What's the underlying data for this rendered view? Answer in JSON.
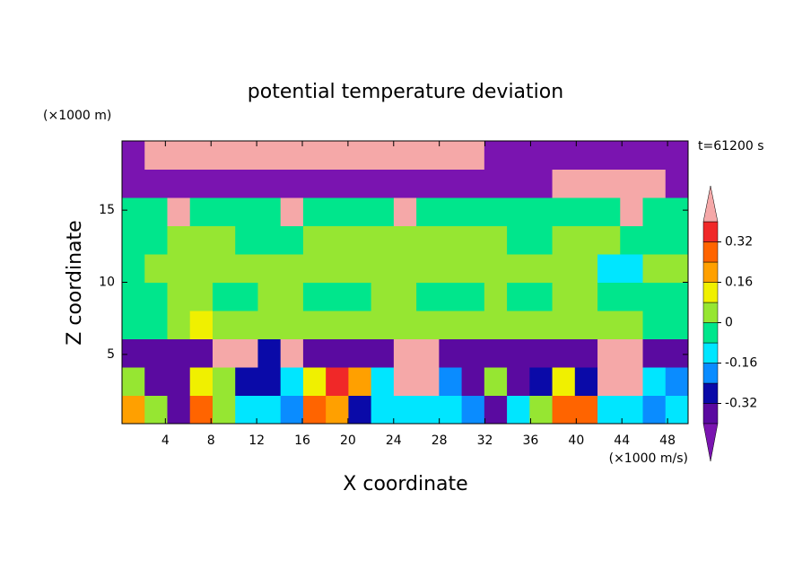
{
  "chart_data": {
    "type": "contour",
    "title": "potential temperature deviation",
    "y_unit_label": "(×1000 m)",
    "x_unit_label": "(×1000 m/s)",
    "time_label": "t=61200 s",
    "xlabel": "X coordinate",
    "ylabel": "Z coordinate",
    "xlim": [
      0.2,
      49.8
    ],
    "ylim": [
      0.2,
      19.8
    ],
    "xticks": [
      4,
      8,
      12,
      16,
      20,
      24,
      28,
      32,
      36,
      40,
      44,
      48
    ],
    "yticks": [
      5,
      10,
      15
    ],
    "levels": [
      -0.4,
      -0.32,
      -0.24,
      -0.16,
      -0.08,
      0,
      0.08,
      0.16,
      0.24,
      0.32,
      0.4
    ],
    "colors": [
      "#7a14b0",
      "#5a0aa0",
      "#0a0aa8",
      "#0a8cff",
      "#00e6ff",
      "#00e68c",
      "#96e632",
      "#f0f000",
      "#ffa000",
      "#ff6400",
      "#f02828",
      "#f5a8a8"
    ],
    "colorbar_ticks": [
      -0.32,
      -0.16,
      0,
      0.16,
      0.32
    ],
    "z": [
      [
        0.2,
        0.05,
        -0.35,
        0.3,
        0.05,
        -0.1,
        -0.1,
        -0.2,
        0.3,
        0.2,
        -0.3,
        -0.1,
        -0.1,
        -0.1,
        -0.1,
        -0.2,
        -0.36,
        -0.1,
        0.05,
        0.3,
        0.3,
        -0.1,
        -0.1,
        -0.2,
        -0.1
      ],
      [
        0.05,
        -0.36,
        -0.36,
        0.1,
        0.05,
        -0.25,
        -0.25,
        -0.1,
        0.1,
        0.35,
        0.2,
        -0.1,
        0.5,
        0.5,
        -0.2,
        -0.36,
        0.05,
        -0.36,
        -0.3,
        0.1,
        -0.3,
        0.5,
        0.5,
        -0.1,
        -0.2
      ],
      [
        -0.36,
        -0.36,
        -0.36,
        -0.36,
        0.5,
        0.5,
        -0.3,
        0.5,
        -0.36,
        -0.36,
        -0.36,
        -0.36,
        0.5,
        0.5,
        -0.36,
        -0.36,
        -0.36,
        -0.36,
        -0.36,
        -0.36,
        -0.36,
        0.5,
        0.5,
        -0.36,
        -0.36
      ],
      [
        -0.04,
        -0.04,
        0.04,
        0.12,
        0.04,
        0.04,
        0.04,
        0.04,
        0.04,
        0.04,
        0.04,
        0.04,
        0.04,
        0.04,
        0.04,
        0.04,
        0.04,
        0.04,
        0.04,
        0.04,
        0.04,
        0.04,
        0.04,
        -0.04,
        -0.04
      ],
      [
        -0.04,
        -0.04,
        0.04,
        0.04,
        -0.04,
        -0.04,
        0.04,
        0.04,
        -0.04,
        -0.04,
        -0.04,
        0.04,
        0.04,
        -0.04,
        -0.04,
        -0.04,
        0.04,
        -0.04,
        -0.04,
        0.04,
        0.04,
        -0.04,
        -0.04,
        -0.04,
        -0.04
      ],
      [
        -0.04,
        0.04,
        0.04,
        0.04,
        0.04,
        0.04,
        0.04,
        0.04,
        0.04,
        0.04,
        0.04,
        0.04,
        0.04,
        0.04,
        0.04,
        0.04,
        0.04,
        0.04,
        0.04,
        0.04,
        0.04,
        -0.1,
        -0.1,
        0.04,
        0.04
      ],
      [
        -0.04,
        -0.04,
        0.04,
        0.04,
        0.04,
        -0.04,
        -0.04,
        -0.04,
        0.04,
        0.04,
        0.04,
        0.04,
        0.04,
        0.04,
        0.04,
        0.04,
        0.04,
        -0.04,
        -0.04,
        0.04,
        0.04,
        0.04,
        -0.04,
        -0.04,
        -0.04
      ],
      [
        -0.04,
        -0.04,
        0.5,
        -0.04,
        -0.04,
        -0.04,
        -0.04,
        0.5,
        -0.04,
        -0.04,
        -0.04,
        -0.04,
        0.5,
        -0.04,
        -0.04,
        -0.04,
        -0.04,
        -0.04,
        -0.04,
        -0.04,
        -0.04,
        -0.04,
        0.5,
        -0.04,
        -0.04
      ],
      [
        -0.45,
        -0.45,
        -0.45,
        -0.45,
        -0.45,
        -0.45,
        -0.45,
        -0.45,
        -0.45,
        -0.45,
        -0.45,
        -0.45,
        -0.45,
        -0.45,
        -0.45,
        -0.45,
        -0.45,
        -0.45,
        -0.45,
        0.5,
        0.5,
        0.5,
        0.5,
        0.5,
        -0.45
      ],
      [
        -0.45,
        0.5,
        0.5,
        0.5,
        0.5,
        0.5,
        0.5,
        0.5,
        0.5,
        0.5,
        0.5,
        0.5,
        0.5,
        0.5,
        0.5,
        0.5,
        -0.45,
        -0.45,
        -0.45,
        -0.45,
        -0.45,
        -0.45,
        -0.45,
        -0.45,
        -0.45
      ]
    ]
  }
}
